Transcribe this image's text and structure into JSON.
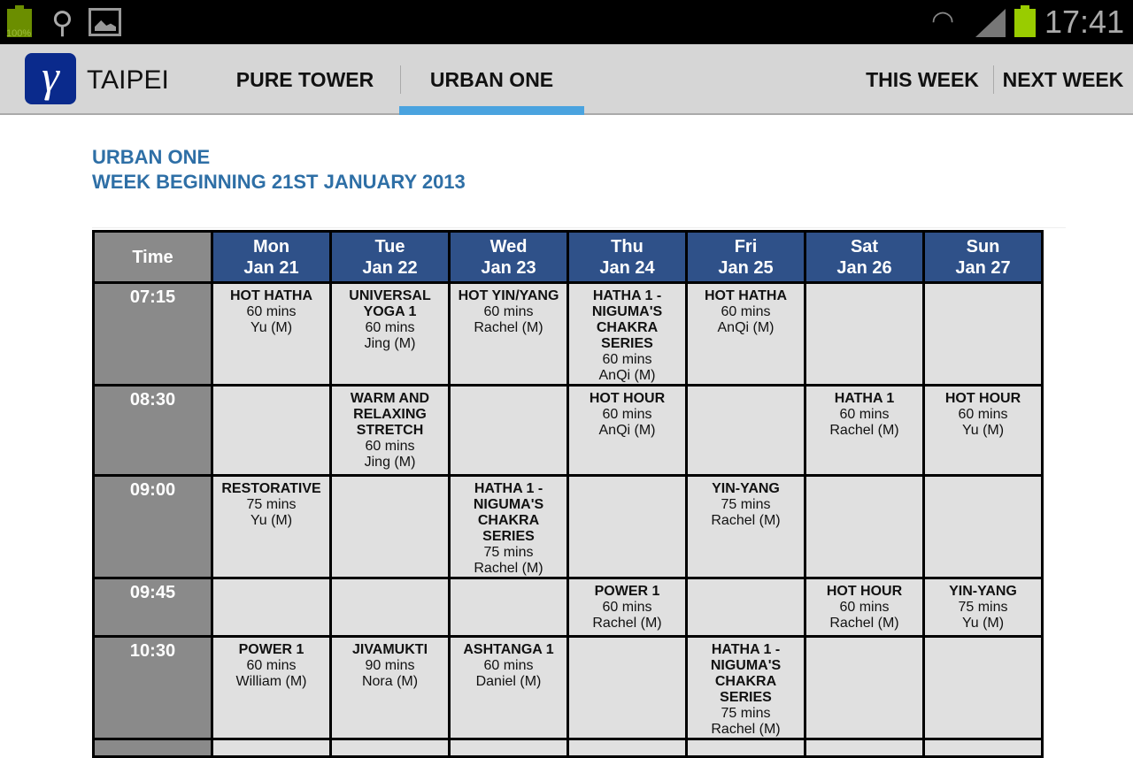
{
  "status_bar": {
    "battery_left": "100%",
    "clock": "17:41",
    "icons": [
      "battery-icon",
      "usb-icon",
      "image-icon",
      "wifi-icon",
      "signal-icon",
      "battery-icon"
    ]
  },
  "action_bar": {
    "logo": "γ",
    "title": "TAIPEI",
    "tabs": [
      {
        "label": "PURE TOWER",
        "active": false
      },
      {
        "label": "URBAN ONE",
        "active": true
      }
    ],
    "right": [
      "THIS WEEK",
      "NEXT WEEK"
    ],
    "accent": "#4aa3df"
  },
  "heading": {
    "line1": "URBAN ONE",
    "line2": "WEEK BEGINNING 21ST JANUARY 2013"
  },
  "schedule": {
    "time_header": "Time",
    "days": [
      {
        "day": "Mon",
        "date": "Jan 21"
      },
      {
        "day": "Tue",
        "date": "Jan 22"
      },
      {
        "day": "Wed",
        "date": "Jan 23"
      },
      {
        "day": "Thu",
        "date": "Jan 24"
      },
      {
        "day": "Fri",
        "date": "Jan 25"
      },
      {
        "day": "Sat",
        "date": "Jan 26"
      },
      {
        "day": "Sun",
        "date": "Jan 27"
      }
    ],
    "rows": [
      {
        "time": "07:15",
        "cells": [
          {
            "name": "HOT HATHA",
            "duration": "60 mins",
            "teacher": "Yu (M)"
          },
          {
            "name": "UNIVERSAL YOGA 1",
            "duration": "60 mins",
            "teacher": "Jing (M)"
          },
          {
            "name": "HOT YIN/YANG",
            "duration": "60 mins",
            "teacher": "Rachel (M)"
          },
          {
            "name": "HATHA 1 - NIGUMA'S CHAKRA SERIES",
            "duration": "60 mins",
            "teacher": "AnQi (M)"
          },
          {
            "name": "HOT HATHA",
            "duration": "60 mins",
            "teacher": "AnQi (M)"
          },
          null,
          null
        ]
      },
      {
        "time": "08:30",
        "cells": [
          null,
          {
            "name": "WARM AND RELAXING STRETCH",
            "duration": "60 mins",
            "teacher": "Jing (M)"
          },
          null,
          {
            "name": "HOT HOUR",
            "duration": "60 mins",
            "teacher": "AnQi (M)"
          },
          null,
          {
            "name": "HATHA 1",
            "duration": "60 mins",
            "teacher": "Rachel (M)"
          },
          {
            "name": "HOT HOUR",
            "duration": "60 mins",
            "teacher": "Yu (M)"
          }
        ]
      },
      {
        "time": "09:00",
        "cells": [
          {
            "name": "RESTORATIVE",
            "duration": "75 mins",
            "teacher": "Yu (M)"
          },
          null,
          {
            "name": "HATHA 1 - NIGUMA'S CHAKRA SERIES",
            "duration": "75 mins",
            "teacher": "Rachel (M)"
          },
          null,
          {
            "name": "YIN-YANG",
            "duration": "75 mins",
            "teacher": "Rachel (M)"
          },
          null,
          null
        ]
      },
      {
        "time": "09:45",
        "cells": [
          null,
          null,
          null,
          {
            "name": "POWER 1",
            "duration": "60 mins",
            "teacher": "Rachel (M)"
          },
          null,
          {
            "name": "HOT HOUR",
            "duration": "60 mins",
            "teacher": "Rachel (M)"
          },
          {
            "name": "YIN-YANG",
            "duration": "75 mins",
            "teacher": "Yu (M)"
          }
        ]
      },
      {
        "time": "10:30",
        "cells": [
          {
            "name": "POWER 1",
            "duration": "60 mins",
            "teacher": "William (M)"
          },
          {
            "name": "JIVAMUKTI",
            "duration": "90 mins",
            "teacher": "Nora (M)"
          },
          {
            "name": "ASHTANGA 1",
            "duration": "60 mins",
            "teacher": "Daniel (M)"
          },
          null,
          {
            "name": "HATHA 1 - NIGUMA'S CHAKRA SERIES",
            "duration": "75 mins",
            "teacher": "Rachel (M)"
          },
          null,
          null
        ]
      },
      {
        "time": "",
        "cells": [
          null,
          null,
          null,
          null,
          null,
          null,
          null
        ]
      }
    ]
  }
}
